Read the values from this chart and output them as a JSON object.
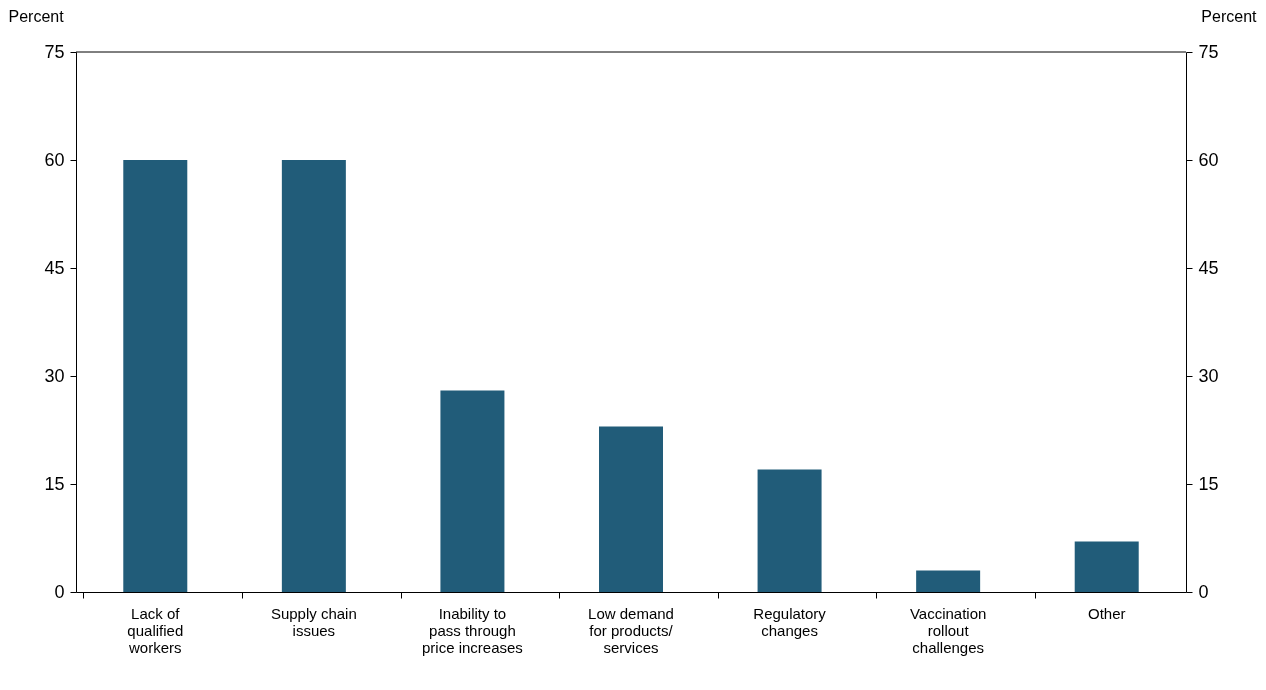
{
  "chart_data": {
    "type": "bar",
    "categories": [
      "Lack of\nqualified\nworkers",
      "Supply chain\nissues",
      "Inability to\npass through\nprice increases",
      "Low demand\nfor products/\nservices",
      "Regulatory\nchanges",
      "Vaccination\nrollout\nchallenges",
      "Other"
    ],
    "values": [
      60,
      60,
      28,
      23,
      17,
      3,
      7
    ],
    "color": "#215c79",
    "ylabel": "Percent",
    "y2label": "Percent",
    "ylim": [
      0,
      75
    ],
    "yticks": [
      0,
      15,
      30,
      45,
      60,
      75
    ],
    "y2lim": [
      0,
      75
    ],
    "y2ticks": [
      0,
      15,
      30,
      45,
      60,
      75
    ],
    "grid": false
  }
}
